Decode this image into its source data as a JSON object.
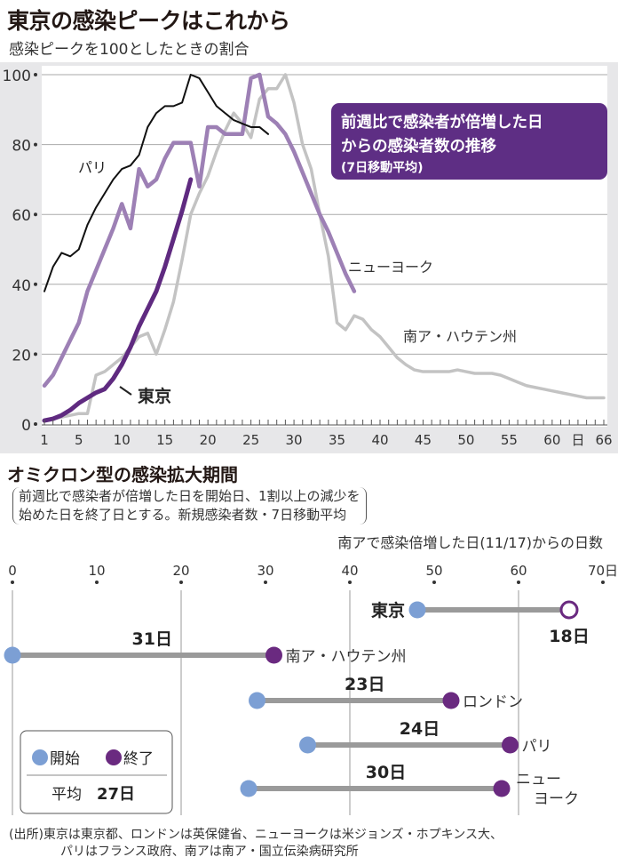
{
  "title": "東京の感染ピークはこれから",
  "subtitle": "感染ピークを100としたときの割合",
  "source": {
    "line1": "(出所)東京は東京都、ロンドンは英保健省、ニューヨークは米ジョンズ・ホプキンス大、",
    "line2": "パリはフランス政府、南アは南ア・国立伝染病研究所"
  },
  "colors": {
    "tokyo": "#5f2a80",
    "newyork": "#9d80b5",
    "paris": "#111111",
    "gauteng": "#c3c3c3",
    "start": "#7c9fd4",
    "end": "#6a2a80",
    "annotation_bg": "#5e2e84"
  },
  "chart_data": [
    {
      "type": "line",
      "title": "東京の感染ピークはこれから",
      "subtitle": "感染ピークを100としたときの割合",
      "annotation": {
        "line1": "前週比で感染者が倍増した日",
        "line2": "からの感染者数の推移",
        "line3": "(7日移動平均)"
      },
      "xlabel": "日",
      "xlim": [
        1,
        66
      ],
      "ylim": [
        0,
        100
      ],
      "xticks": [
        "1",
        "5",
        "10",
        "15",
        "20",
        "25",
        "30",
        "35",
        "40",
        "45",
        "50",
        "55",
        "60",
        "66"
      ],
      "xticks_values": [
        1,
        5,
        10,
        15,
        20,
        25,
        30,
        35,
        40,
        45,
        50,
        55,
        60,
        66
      ],
      "yticks": [
        "0",
        "20",
        "40",
        "60",
        "80",
        "100"
      ],
      "grid": true,
      "series": [
        {
          "name": "南ア・ハウテン州",
          "color": "#c3c3c3",
          "values": [
            1,
            1.5,
            2,
            2.5,
            3,
            3,
            14,
            15,
            17,
            19,
            22,
            25,
            26,
            20,
            27,
            35,
            47,
            60,
            66,
            71,
            78,
            84,
            89,
            86,
            82,
            93,
            96,
            96,
            100,
            92,
            80,
            73,
            60,
            48,
            29,
            27,
            31,
            30,
            27,
            25,
            22,
            19,
            17,
            15.5,
            15,
            15,
            15,
            15,
            15.5,
            15,
            14.5,
            14.5,
            14.5,
            14,
            13,
            12,
            11,
            10.5,
            10,
            9.5,
            9,
            8.5,
            8,
            7.5,
            7.5,
            7.5
          ]
        },
        {
          "name": "ニューヨーク",
          "color": "#9d80b5",
          "values": [
            11,
            14,
            19,
            24,
            29,
            38,
            44,
            50,
            56,
            63,
            56,
            73,
            68,
            70,
            76,
            80.5,
            80.5,
            80.5,
            68,
            85,
            85,
            83,
            83,
            83,
            99,
            100,
            88,
            86,
            83,
            78,
            72,
            66,
            60,
            55,
            49,
            43,
            38
          ]
        },
        {
          "name": "パリ",
          "color": "#111111",
          "values": [
            38,
            45,
            49,
            48,
            50,
            57,
            62,
            66,
            70,
            73,
            74,
            77,
            85,
            89,
            91,
            91,
            92,
            100,
            99,
            95,
            91,
            89,
            87,
            86,
            85,
            85,
            83
          ]
        },
        {
          "name": "東京",
          "color": "#5f2a80",
          "values": [
            1,
            1.5,
            2.5,
            4,
            6,
            7.5,
            9,
            10,
            13,
            17,
            22,
            28,
            33,
            38,
            45,
            53,
            61,
            70
          ]
        }
      ]
    },
    {
      "type": "range",
      "title": "オミクロン型の感染拡大期間",
      "note": {
        "line1": "前週比で感染者が倍増した日を開始日、1割以上の減少を",
        "line2": "始めた日を終了日とする。新規感染者数・7日移動平均"
      },
      "xlabel": "南アで感染倍増した日(11/17)からの日数",
      "xlim": [
        0,
        70
      ],
      "xticks": [
        "0",
        "10",
        "20",
        "30",
        "40",
        "50",
        "60",
        "70日"
      ],
      "legend": {
        "start": "開始",
        "end": "終了",
        "average_label": "平均",
        "average_value": "27日"
      },
      "rows": [
        {
          "name": "東京",
          "start": 48,
          "end": 66,
          "duration": "18日",
          "ongoing": true
        },
        {
          "name": "南ア・ハウテン州",
          "start": 0,
          "end": 31,
          "duration": "31日"
        },
        {
          "name": "ロンドン",
          "start": 29,
          "end": 52,
          "duration": "23日"
        },
        {
          "name": "パリ",
          "start": 35,
          "end": 59,
          "duration": "24日"
        },
        {
          "name": "ニュー",
          "name2": "ヨーク",
          "start": 28,
          "end": 58,
          "duration": "30日"
        }
      ]
    }
  ]
}
